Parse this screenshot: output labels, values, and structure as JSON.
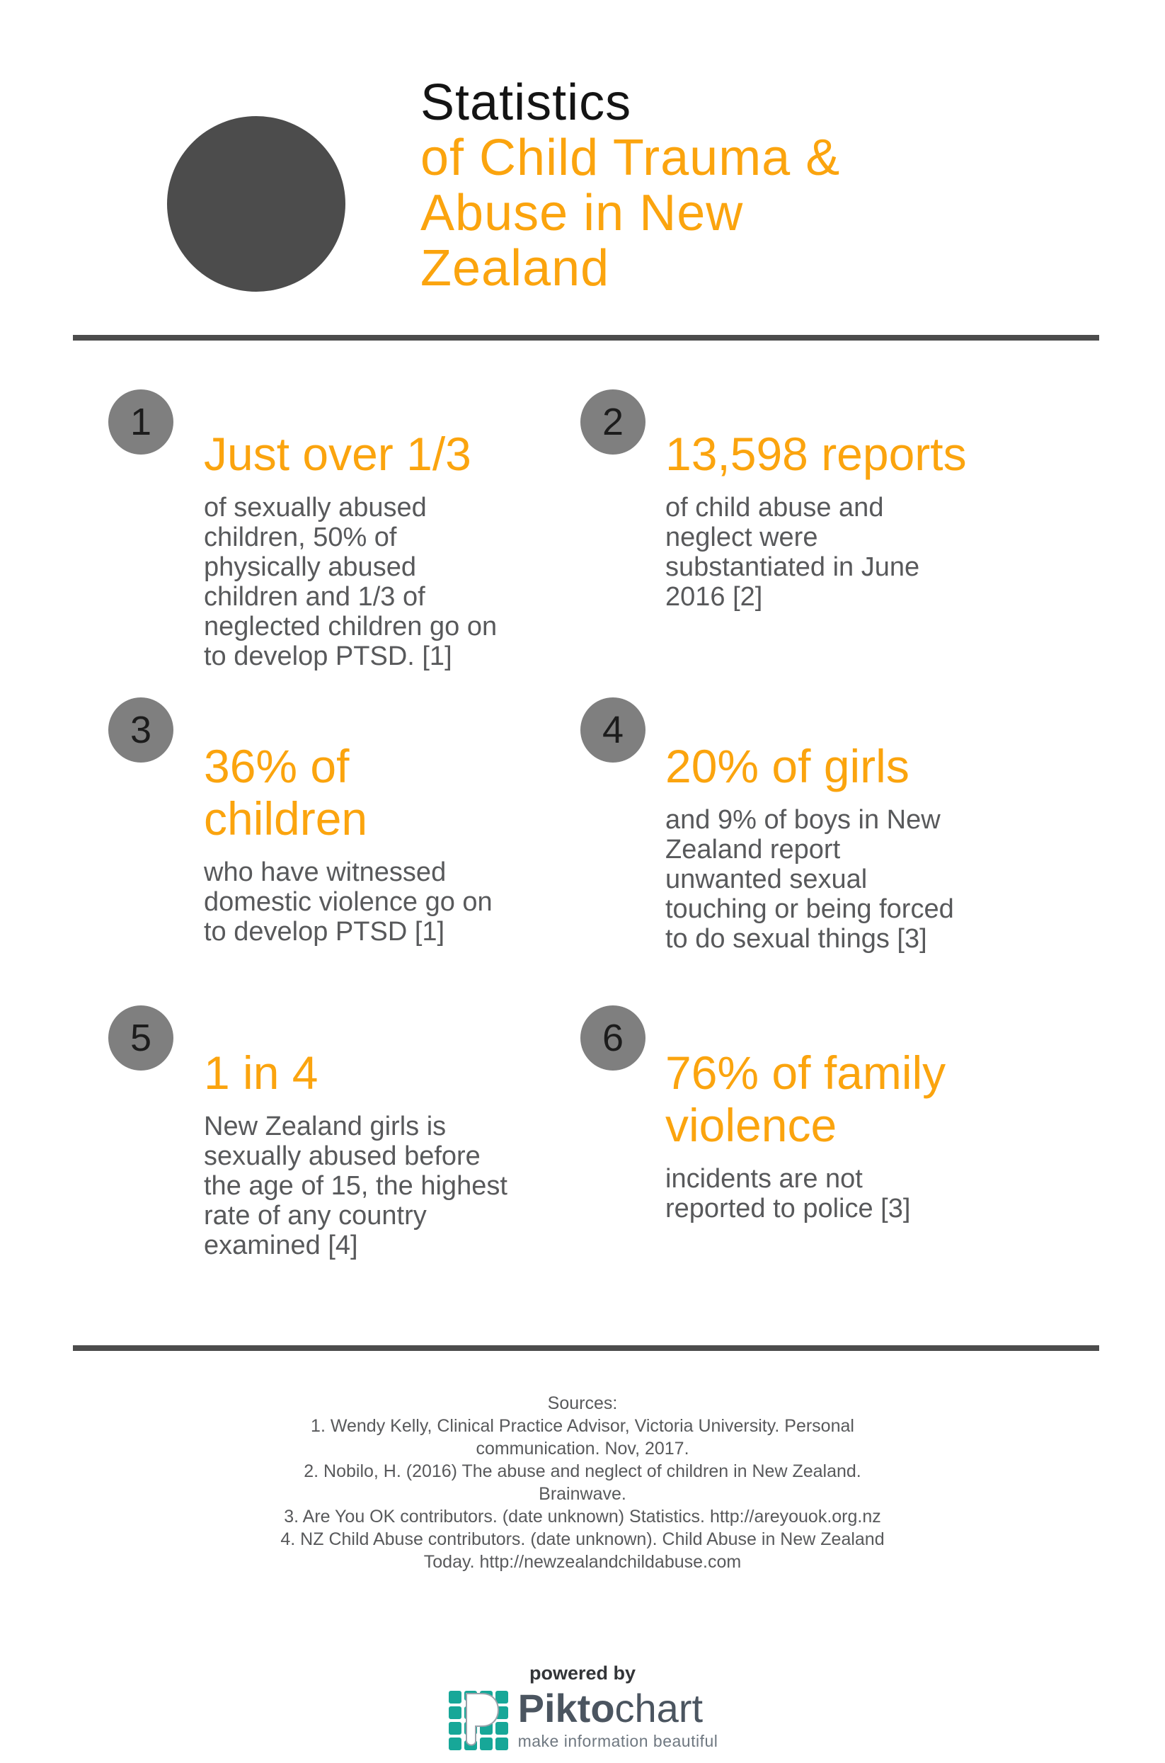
{
  "header": {
    "title_black": "Statistics",
    "title_orange_lines": [
      "of Child Trauma &",
      "Abuse in New",
      "Zealand"
    ]
  },
  "stats": [
    {
      "number": "1",
      "heading_lines": [
        "Just over 1/3"
      ],
      "body_lines": [
        "of sexually abused",
        "children, 50% of",
        "physically abused",
        "children and 1/3 of",
        "neglected children go on",
        "to develop PTSD. [1]"
      ]
    },
    {
      "number": "2",
      "heading_lines": [
        "13,598 reports"
      ],
      "body_lines": [
        "of child abuse and",
        "neglect were",
        "substantiated in June",
        "2016 [2]"
      ]
    },
    {
      "number": "3",
      "heading_lines": [
        "36% of",
        "children"
      ],
      "body_lines": [
        "who have witnessed",
        "domestic violence go on",
        "to develop PTSD [1]"
      ]
    },
    {
      "number": "4",
      "heading_lines": [
        "20% of girls"
      ],
      "body_lines": [
        "and 9% of boys in New",
        "Zealand report",
        "unwanted sexual",
        "touching or being forced",
        "to do sexual things [3]"
      ]
    },
    {
      "number": "5",
      "heading_lines": [
        "1 in 4"
      ],
      "body_lines": [
        "New Zealand girls is",
        "sexually abused before",
        "the age of 15, the highest",
        "rate of any country",
        "examined [4]"
      ]
    },
    {
      "number": "6",
      "heading_lines": [
        "76% of family",
        "violence"
      ],
      "body_lines": [
        "incidents are not",
        "reported to police [3]"
      ]
    }
  ],
  "sources": {
    "title": "Sources:",
    "lines": [
      "1. Wendy Kelly, Clinical Practice Advisor, Victoria University. Personal",
      "communication. Nov, 2017.",
      "2. Nobilo, H. (2016) The abuse and neglect of children in New Zealand.",
      "Brainwave.",
      "3. Are You OK contributors. (date unknown) Statistics. http://areyouok.org.nz",
      "4. NZ Child Abuse contributors. (date unknown). Child Abuse in New Zealand",
      "Today. http://newzealandchildabuse.com"
    ]
  },
  "footer": {
    "powered_by": "powered by",
    "brand_bold": "Pikto",
    "brand_light": "chart",
    "tagline": "make information beautiful",
    "logo_icon": "piktochart-p-mosaic-icon"
  },
  "colors": {
    "accent_orange": "#FBA40E",
    "title_black": "#141414",
    "dark_gray": "#4C4C4C",
    "badge_gray": "#7F7F7F",
    "badge_number": "#1C1C1C",
    "body_gray": "#58595B",
    "teal": "#17A798",
    "brand_dark": "#4B5560",
    "tagline_gray": "#6F7881"
  }
}
